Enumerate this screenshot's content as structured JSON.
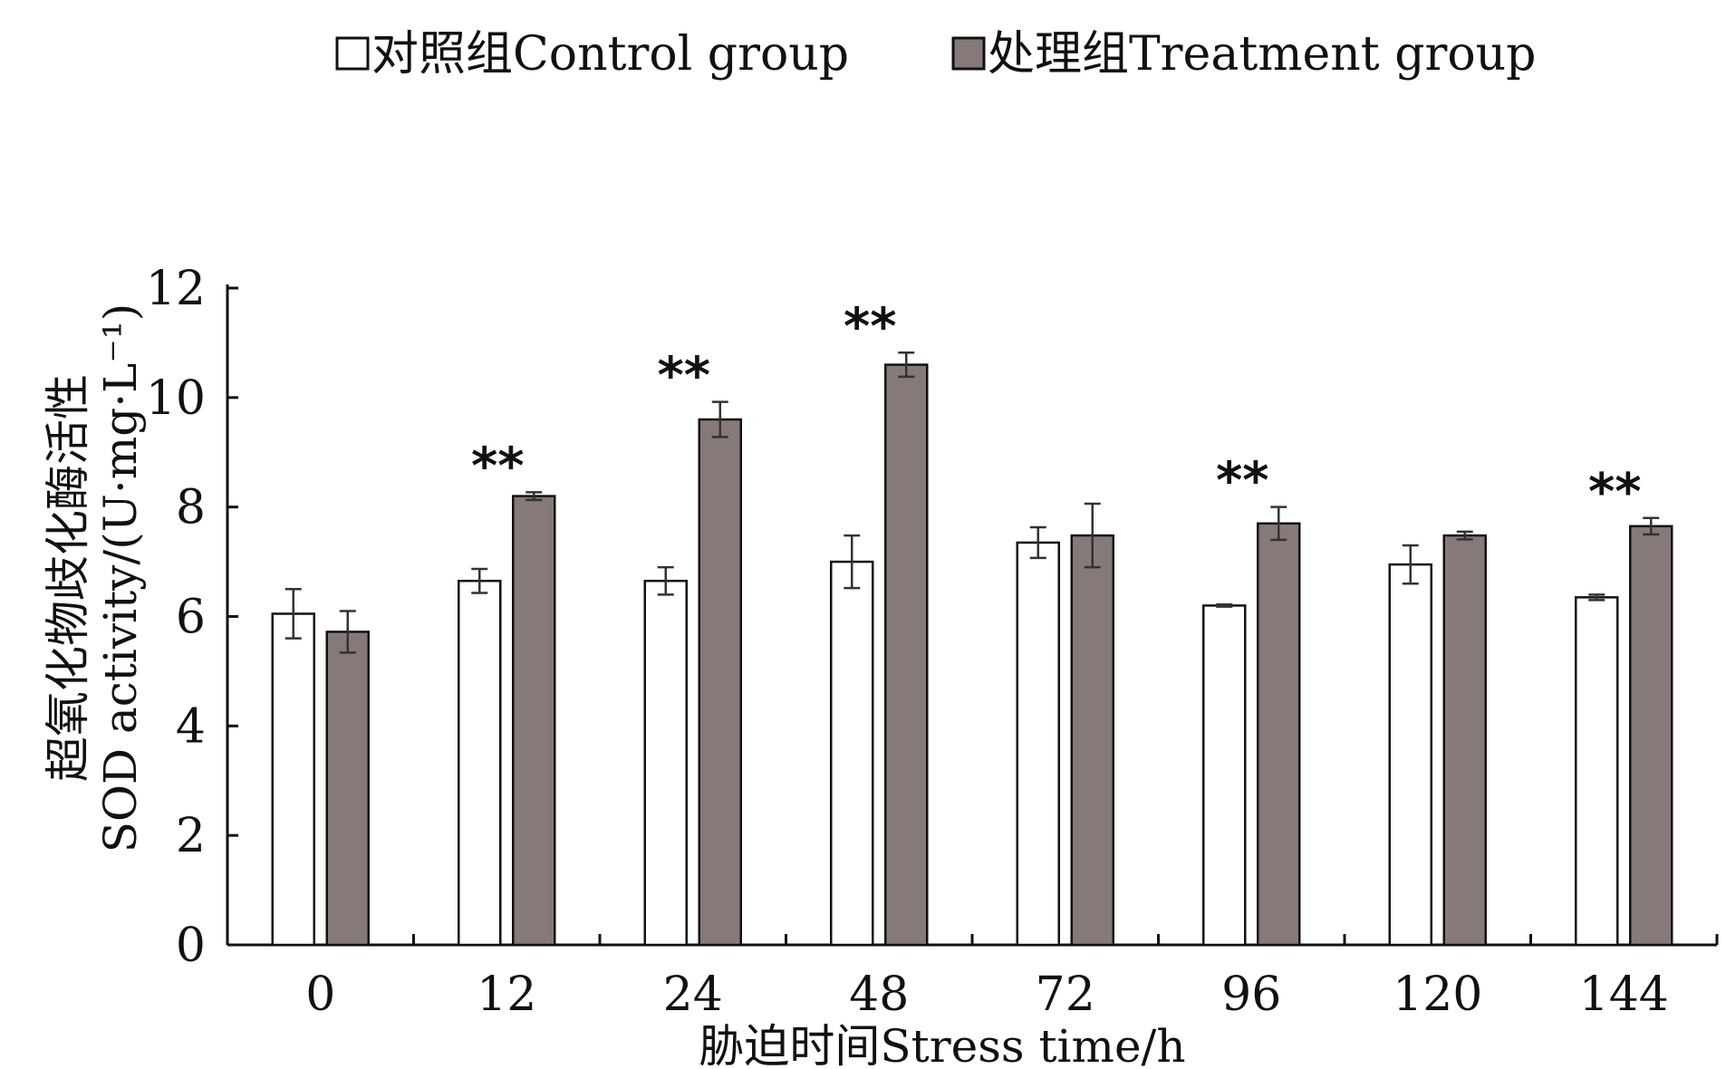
{
  "chart_data": {
    "type": "bar",
    "title": "",
    "categories": [
      "0",
      "12",
      "24",
      "48",
      "72",
      "96",
      "120",
      "144"
    ],
    "series": [
      {
        "name": "对照组Control group",
        "color": "#ffffff",
        "values": [
          6.05,
          6.65,
          6.65,
          7.0,
          7.35,
          6.2,
          6.95,
          6.35
        ],
        "errors": [
          0.45,
          0.22,
          0.25,
          0.48,
          0.28,
          0.02,
          0.35,
          0.05
        ]
      },
      {
        "name": "处理组Treatment group",
        "color": "#857a78",
        "values": [
          5.72,
          8.2,
          9.6,
          10.6,
          7.48,
          7.7,
          7.48,
          7.65
        ],
        "errors": [
          0.38,
          0.07,
          0.32,
          0.22,
          0.58,
          0.3,
          0.07,
          0.15
        ]
      }
    ],
    "significance": [
      "",
      "**",
      "**",
      "**",
      "",
      "**",
      "",
      "**"
    ],
    "xlabel": "胁迫时间Stress time/h",
    "ylabel_cn": "超氧化物歧化酶活性",
    "ylabel_en": "SOD activity/(U·mg·L⁻¹)",
    "ylim": [
      0,
      12
    ],
    "yticks": [
      0,
      2,
      4,
      6,
      8,
      10,
      12
    ],
    "legend_position": "top-center"
  }
}
